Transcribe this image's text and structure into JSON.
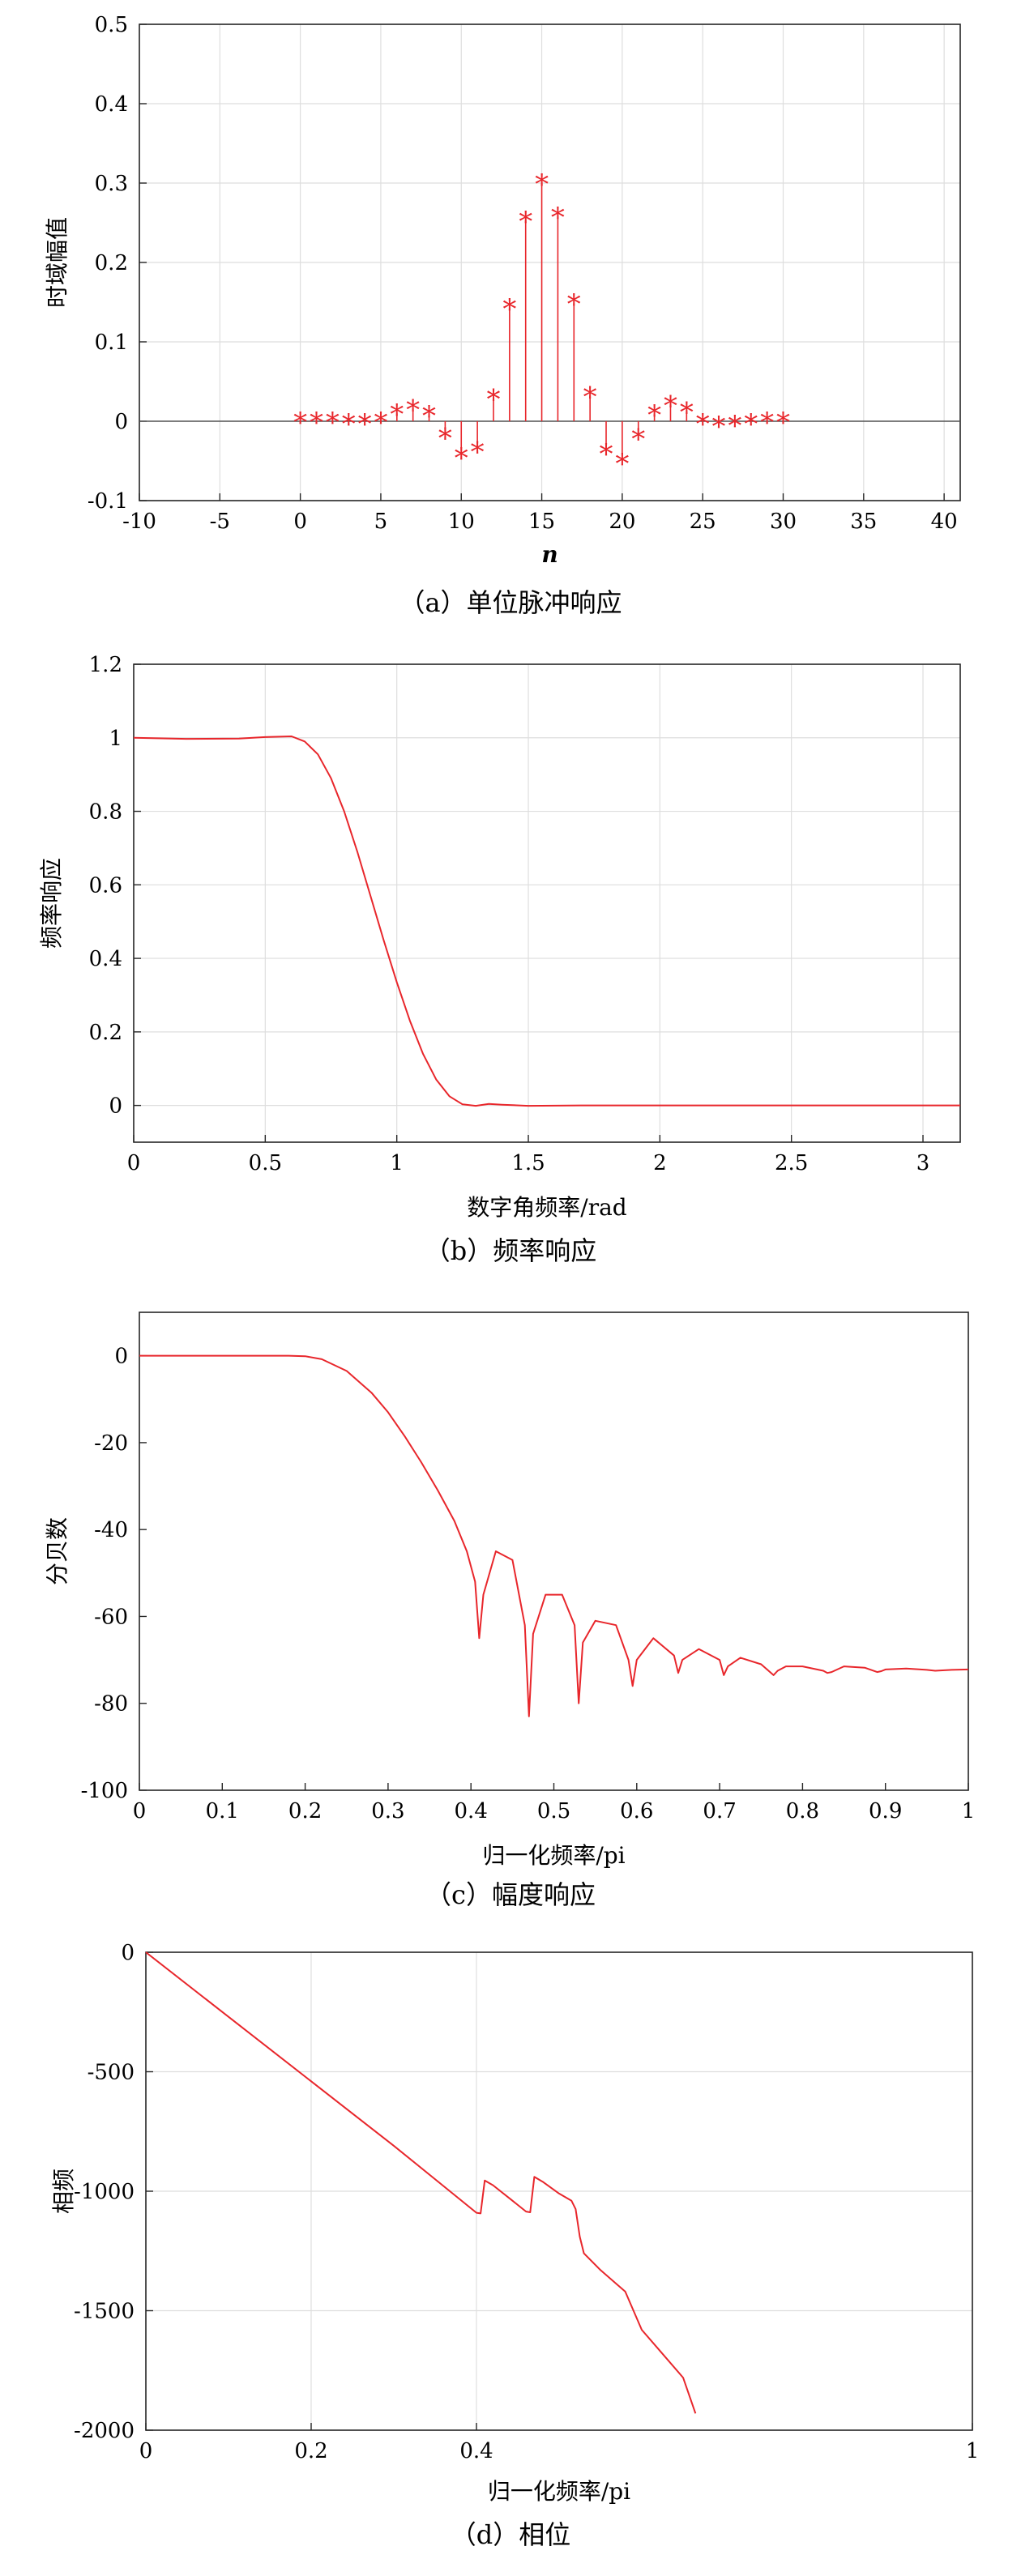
{
  "chart_data": [
    {
      "type": "stem",
      "title": "",
      "caption": "（a）单位脉冲响应",
      "xlabel": "n",
      "ylabel": "时域幅值",
      "xlim": [
        -10,
        41
      ],
      "ylim": [
        -0.1,
        0.5
      ],
      "xticks": [
        "-10",
        "-5",
        "0",
        "5",
        "10",
        "15",
        "20",
        "25",
        "30",
        "35",
        "40"
      ],
      "yticks": [
        "-0.1",
        "0",
        "0.1",
        "0.2",
        "0.3",
        "0.4",
        "0.5"
      ],
      "grid": true,
      "color": "#e8262b",
      "marker": "*",
      "x": [
        0,
        1,
        2,
        3,
        4,
        5,
        6,
        7,
        8,
        9,
        10,
        11,
        12,
        13,
        14,
        15,
        16,
        17,
        18,
        19,
        20,
        21,
        22,
        23,
        24,
        25,
        26,
        27,
        28,
        29,
        30
      ],
      "y": [
        0.0,
        0.0,
        0.0,
        -0.002,
        -0.002,
        0.0,
        0.01,
        0.016,
        0.008,
        -0.02,
        -0.045,
        -0.037,
        0.029,
        0.143,
        0.253,
        0.3,
        0.258,
        0.149,
        0.032,
        -0.04,
        -0.052,
        -0.021,
        0.009,
        0.021,
        0.013,
        -0.002,
        -0.005,
        -0.004,
        -0.002,
        0.0,
        0.0
      ]
    },
    {
      "type": "line",
      "caption": "（b）频率响应",
      "xlabel": "数字角频率/rad",
      "ylabel": "频率响应",
      "xlim": [
        0,
        3.1416
      ],
      "ylim": [
        -0.1,
        1.2
      ],
      "xticks": [
        "0",
        "0.5",
        "1",
        "1.5",
        "2",
        "2.5",
        "3"
      ],
      "yticks": [
        "0",
        "0.2",
        "0.4",
        "0.6",
        "0.8",
        "1",
        "1.2"
      ],
      "grid": true,
      "color": "#e8262b",
      "x": [
        0,
        0.2,
        0.4,
        0.5,
        0.6,
        0.65,
        0.7,
        0.75,
        0.8,
        0.85,
        0.9,
        0.95,
        1.0,
        1.05,
        1.1,
        1.15,
        1.2,
        1.25,
        1.3,
        1.35,
        1.4,
        1.5,
        1.7,
        2.0,
        2.5,
        3.1416
      ],
      "y": [
        1.0,
        0.997,
        0.998,
        1.002,
        1.004,
        0.99,
        0.955,
        0.89,
        0.8,
        0.69,
        0.57,
        0.45,
        0.335,
        0.23,
        0.14,
        0.07,
        0.025,
        0.003,
        -0.001,
        0.004,
        0.002,
        -0.001,
        0.0,
        0.0,
        0.0,
        0.0
      ]
    },
    {
      "type": "line",
      "caption": "（c）幅度响应",
      "xlabel": "归一化频率/pi",
      "ylabel": "分贝数",
      "xlim": [
        0,
        1
      ],
      "ylim": [
        -100,
        10
      ],
      "xticks": [
        "0",
        "0.1",
        "0.2",
        "0.3",
        "0.4",
        "0.5",
        "0.6",
        "0.7",
        "0.8",
        "0.9",
        "1"
      ],
      "yticks": [
        "-100",
        "-80",
        "-60",
        "-40",
        "-20",
        "0"
      ],
      "grid": false,
      "color": "#e8262b",
      "x": [
        0,
        0.1,
        0.18,
        0.2,
        0.22,
        0.25,
        0.28,
        0.3,
        0.32,
        0.34,
        0.36,
        0.38,
        0.395,
        0.405,
        0.41,
        0.415,
        0.43,
        0.45,
        0.465,
        0.47,
        0.475,
        0.49,
        0.51,
        0.525,
        0.53,
        0.535,
        0.55,
        0.575,
        0.59,
        0.595,
        0.6,
        0.62,
        0.645,
        0.65,
        0.655,
        0.675,
        0.7,
        0.705,
        0.71,
        0.725,
        0.75,
        0.765,
        0.77,
        0.78,
        0.8,
        0.825,
        0.83,
        0.835,
        0.85,
        0.875,
        0.89,
        0.895,
        0.9,
        0.925,
        0.95,
        0.96,
        0.98,
        1.0
      ],
      "y": [
        0,
        0,
        0,
        -0.1,
        -0.8,
        -3.5,
        -8.5,
        -13,
        -18.5,
        -24.5,
        -31,
        -38,
        -45,
        -52,
        -65,
        -55,
        -45,
        -47,
        -62,
        -83,
        -64,
        -55,
        -55,
        -62,
        -80,
        -66,
        -61,
        -62,
        -70,
        -76,
        -70,
        -65,
        -69,
        -73,
        -70,
        -67.5,
        -70,
        -73.5,
        -71.5,
        -69.5,
        -71,
        -73.5,
        -72.5,
        -71.5,
        -71.5,
        -72.5,
        -73,
        -72.8,
        -71.5,
        -71.8,
        -72.8,
        -72.6,
        -72.2,
        -72,
        -72.3,
        -72.5,
        -72.3,
        -72.2
      ]
    },
    {
      "type": "line",
      "caption": "（d）相位",
      "xlabel": "归一化频率/pi",
      "ylabel": "相频",
      "xlim": [
        0,
        1
      ],
      "ylim": [
        -2000,
        0
      ],
      "xticks": [
        "0",
        "0.2",
        "0.4",
        "1"
      ],
      "yticks": [
        "-2000",
        "-1500",
        "-1000",
        "-500",
        "0"
      ],
      "grid": true,
      "color": "#e8262b",
      "x": [
        0,
        0.1,
        0.2,
        0.3,
        0.4,
        0.405,
        0.41,
        0.42,
        0.44,
        0.46,
        0.465,
        0.47,
        0.48,
        0.5,
        0.515,
        0.52,
        0.525,
        0.53,
        0.55,
        0.58,
        0.59,
        0.6,
        0.62,
        0.65,
        0.665
      ],
      "y": [
        0,
        -270,
        -540,
        -810,
        -1090,
        -1093,
        -955,
        -975,
        -1030,
        -1085,
        -1088,
        -940,
        -960,
        -1010,
        -1040,
        -1075,
        -1190,
        -1260,
        -1330,
        -1420,
        -1500,
        -1580,
        -1660,
        -1780,
        -1930
      ]
    }
  ]
}
